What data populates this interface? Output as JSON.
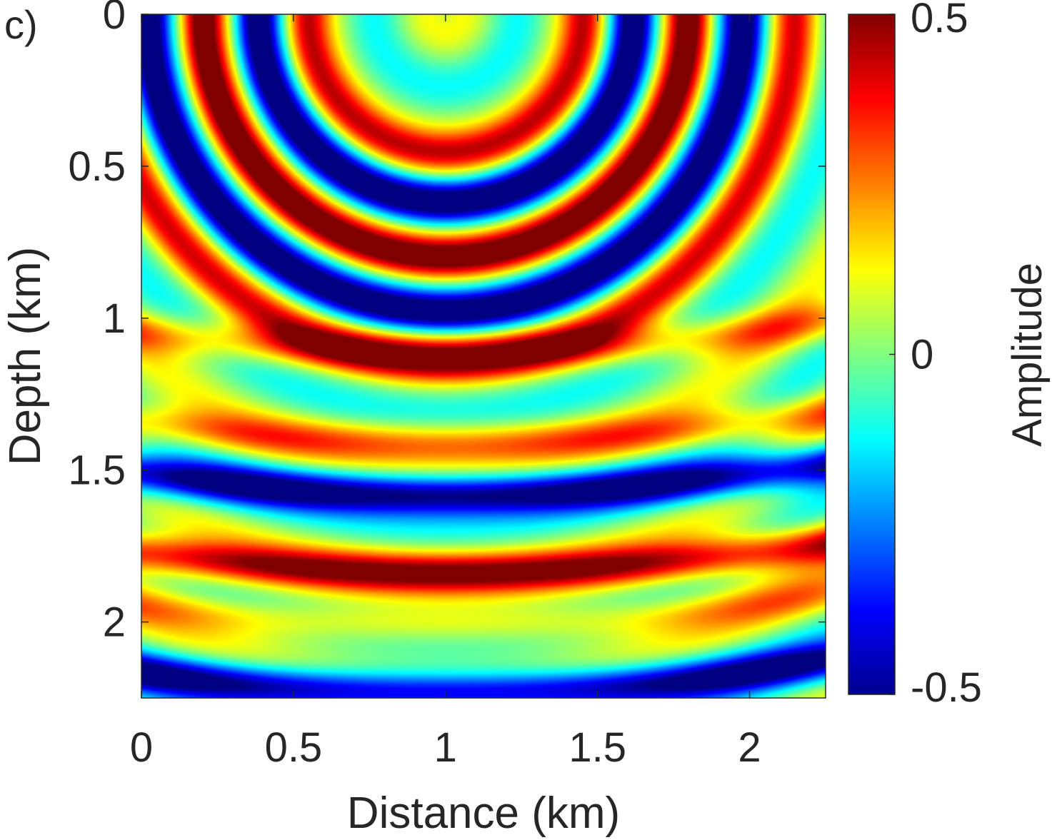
{
  "panel_label": "c)",
  "chart_data": {
    "type": "heatmap",
    "title": "",
    "xlabel": "Distance (km)",
    "ylabel": "Depth (km)",
    "xlim": [
      0,
      2.25
    ],
    "ylim": [
      0,
      2.25
    ],
    "y_reversed": true,
    "x_ticks": [
      0,
      0.5,
      1,
      1.5,
      2
    ],
    "x_tick_labels": [
      "0",
      "0.5",
      "1",
      "1.5",
      "2"
    ],
    "y_ticks": [
      0,
      0.5,
      1,
      1.5,
      2
    ],
    "y_tick_labels": [
      "0",
      "0.5",
      "1",
      "1.5",
      "2"
    ],
    "colormap": "jet",
    "colorbar": {
      "label": "Amplitude",
      "clim": [
        -0.5,
        0.5
      ],
      "ticks": [
        0.5,
        0,
        -0.5
      ],
      "tick_labels": [
        "0.5",
        "0",
        "-0.5"
      ]
    },
    "field": {
      "description_type": "wavefield",
      "source": {
        "x": 1.0,
        "z": 0.0
      },
      "wave_period_km": 0.36,
      "front_phase_offset": 0.6,
      "bands_from_source": [
        {
          "radius_km": 0.2,
          "amplitude": 0.0
        },
        {
          "radius_km": 0.46,
          "amplitude": 0.35
        },
        {
          "radius_km": 0.62,
          "amplitude": -0.5
        },
        {
          "radius_km": 0.8,
          "amplitude": 0.5
        },
        {
          "radius_km": 0.98,
          "amplitude": -0.5
        },
        {
          "radius_km": 1.15,
          "amplitude": 0.3
        }
      ],
      "layers": [
        {
          "depth_km": 1.05,
          "amplitude": 0.25
        },
        {
          "depth_km": 1.35,
          "amplitude": 0.25
        },
        {
          "depth_km": 1.52,
          "amplitude": -0.5
        },
        {
          "depth_km": 1.78,
          "amplitude": 0.45
        },
        {
          "depth_km": 1.95,
          "amplitude": 0.2
        },
        {
          "depth_km": 2.17,
          "amplitude": -0.5
        }
      ]
    },
    "grid": false,
    "legend": "none"
  }
}
